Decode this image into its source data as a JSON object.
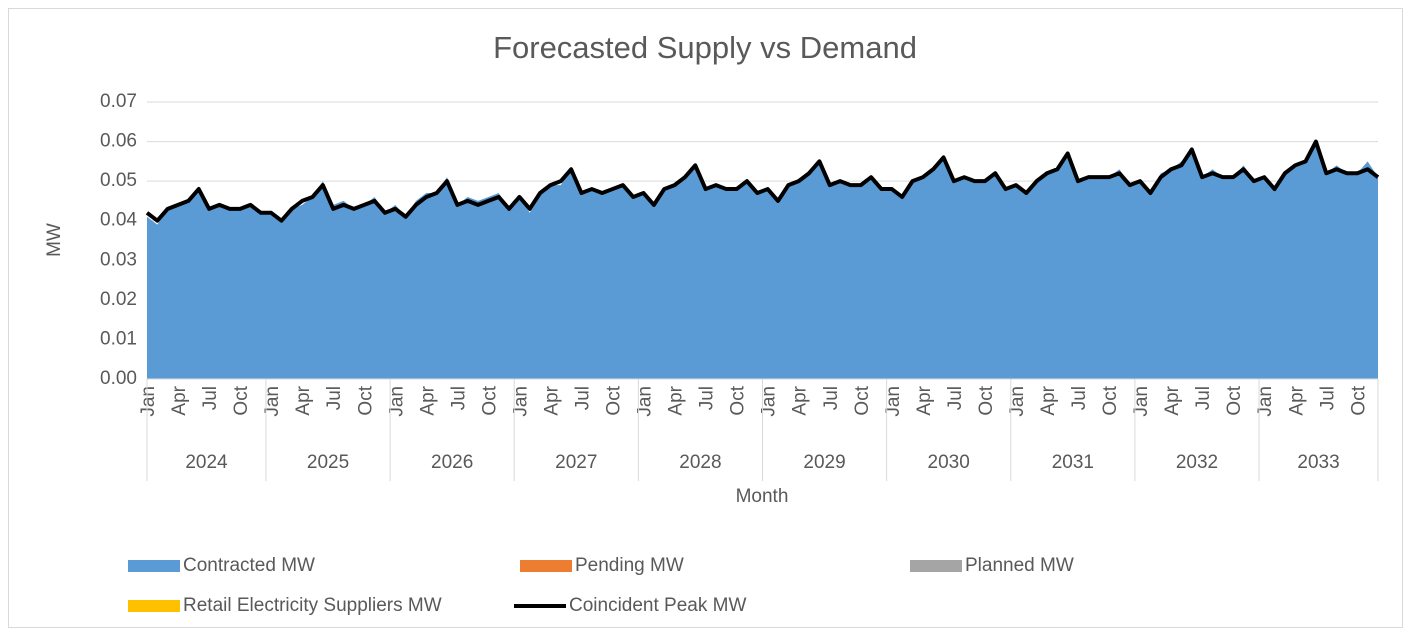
{
  "chart_data": {
    "type": "stacked_area_line",
    "title": "Forecasted Supply vs Demand",
    "y_label": "MW",
    "x_label": "Month",
    "categories": [
      "Jan",
      null,
      null,
      "Apr",
      null,
      null,
      "Jul",
      null,
      null,
      "Oct",
      null,
      null,
      "Jan",
      null,
      null,
      "Apr",
      null,
      null,
      "Jul",
      null,
      null,
      "Oct",
      null,
      null,
      "Jan",
      null,
      null,
      "Apr",
      null,
      null,
      "Jul",
      null,
      null,
      "Oct",
      null,
      null,
      "Jan",
      null,
      null,
      "Apr",
      null,
      null,
      "Jul",
      null,
      null,
      "Oct",
      null,
      null,
      "Jan",
      null,
      null,
      "Apr",
      null,
      null,
      "Jul",
      null,
      null,
      "Oct",
      null,
      null,
      "Jan",
      null,
      null,
      "Apr",
      null,
      null,
      "Jul",
      null,
      null,
      "Oct",
      null,
      null,
      "Jan",
      null,
      null,
      "Apr",
      null,
      null,
      "Jul",
      null,
      null,
      "Oct",
      null,
      null,
      "Jan",
      null,
      null,
      "Apr",
      null,
      null,
      "Jul",
      null,
      null,
      "Oct",
      null,
      null,
      "Jan",
      null,
      null,
      "Apr",
      null,
      null,
      "Jul",
      null,
      null,
      "Oct",
      null,
      null,
      "Jan",
      null,
      null,
      "Apr",
      null,
      null,
      "Jul",
      null,
      null,
      "Oct",
      null,
      null
    ],
    "year_groups": [
      "2024",
      "2025",
      "2026",
      "2027",
      "2028",
      "2029",
      "2030",
      "2031",
      "2032",
      "2033"
    ],
    "ylim": [
      0,
      0.07
    ],
    "yticks": [
      {
        "value": 0,
        "label": "0.00"
      },
      0.01,
      0.02,
      0.03,
      0.04,
      0.05,
      0.06,
      0.07
    ],
    "grid": true,
    "series": [
      {
        "name": "Contracted MW",
        "color": "#5b9bd5",
        "kind": "area",
        "values": [
          0.041,
          0.039,
          0.043,
          0.044,
          0.045,
          0.048,
          0.043,
          0.044,
          0.043,
          0.043,
          0.044,
          0.042,
          0.042,
          0.04,
          0.043,
          0.044,
          0.046,
          0.05,
          0.044,
          0.045,
          0.043,
          0.044,
          0.046,
          0.042,
          0.044,
          0.041,
          0.045,
          0.047,
          0.047,
          0.051,
          0.044,
          0.046,
          0.045,
          0.046,
          0.047,
          0.043,
          0.046,
          0.042,
          0.047,
          0.049,
          0.049,
          0.053,
          0.047,
          0.048,
          0.047,
          0.048,
          0.049,
          0.046,
          0.047,
          0.044,
          0.048,
          0.049,
          0.051,
          0.054,
          0.048,
          0.049,
          0.048,
          0.048,
          0.05,
          0.047,
          0.048,
          0.045,
          0.049,
          0.05,
          0.052,
          0.055,
          0.049,
          0.05,
          0.049,
          0.049,
          0.051,
          0.048,
          0.048,
          0.046,
          0.05,
          0.051,
          0.053,
          0.056,
          0.05,
          0.051,
          0.05,
          0.05,
          0.052,
          0.048,
          0.049,
          0.047,
          0.05,
          0.052,
          0.053,
          0.057,
          0.05,
          0.051,
          0.051,
          0.051,
          0.053,
          0.049,
          0.05,
          0.047,
          0.052,
          0.053,
          0.055,
          0.058,
          0.051,
          0.053,
          0.051,
          0.051,
          0.054,
          0.05,
          0.051,
          0.048,
          0.052,
          0.054,
          0.055,
          0.06,
          0.052,
          0.054,
          0.052,
          0.052,
          0.055,
          0.051
        ]
      },
      {
        "name": "Pending MW",
        "color": "#ed7d31",
        "kind": "area",
        "values": [
          0,
          0,
          0,
          0,
          0,
          0,
          0,
          0,
          0,
          0,
          0,
          0,
          0,
          0,
          0,
          0,
          0,
          0,
          0,
          0,
          0,
          0,
          0,
          0,
          0,
          0,
          0,
          0,
          0,
          0,
          0,
          0,
          0,
          0,
          0,
          0,
          0,
          0,
          0,
          0,
          0,
          0,
          0,
          0,
          0,
          0,
          0,
          0,
          0,
          0,
          0,
          0,
          0,
          0,
          0,
          0,
          0,
          0,
          0,
          0,
          0,
          0,
          0,
          0,
          0,
          0,
          0,
          0,
          0,
          0,
          0,
          0,
          0,
          0,
          0,
          0,
          0,
          0,
          0,
          0,
          0,
          0,
          0,
          0,
          0,
          0,
          0,
          0,
          0,
          0,
          0,
          0,
          0,
          0,
          0,
          0,
          0,
          0,
          0,
          0,
          0,
          0,
          0,
          0,
          0,
          0,
          0,
          0,
          0,
          0,
          0,
          0,
          0,
          0,
          0,
          0,
          0,
          0,
          0,
          0
        ]
      },
      {
        "name": "Planned MW",
        "color": "#a5a5a5",
        "kind": "area",
        "values": [
          0,
          0,
          0,
          0,
          0,
          0,
          0,
          0,
          0,
          0,
          0,
          0,
          0,
          0,
          0,
          0,
          0,
          0,
          0,
          0,
          0,
          0,
          0,
          0,
          0,
          0,
          0,
          0,
          0,
          0,
          0,
          0,
          0,
          0,
          0,
          0,
          0,
          0,
          0,
          0,
          0,
          0,
          0,
          0,
          0,
          0,
          0,
          0,
          0,
          0,
          0,
          0,
          0,
          0,
          0,
          0,
          0,
          0,
          0,
          0,
          0,
          0,
          0,
          0,
          0,
          0,
          0,
          0,
          0,
          0,
          0,
          0,
          0,
          0,
          0,
          0,
          0,
          0,
          0,
          0,
          0,
          0,
          0,
          0,
          0,
          0,
          0,
          0,
          0,
          0,
          0,
          0,
          0,
          0,
          0,
          0,
          0,
          0,
          0,
          0,
          0,
          0,
          0,
          0,
          0,
          0,
          0,
          0,
          0,
          0,
          0,
          0,
          0,
          0,
          0,
          0,
          0,
          0,
          0,
          0
        ]
      },
      {
        "name": "Retail Electricity Suppliers MW",
        "color": "#ffc000",
        "kind": "area",
        "values": [
          0,
          0,
          0,
          0,
          0,
          0,
          0,
          0,
          0,
          0,
          0,
          0,
          0,
          0,
          0,
          0,
          0,
          0,
          0,
          0,
          0,
          0,
          0,
          0,
          0,
          0,
          0,
          0,
          0,
          0,
          0,
          0,
          0,
          0,
          0,
          0,
          0,
          0,
          0,
          0,
          0,
          0,
          0,
          0,
          0,
          0,
          0,
          0,
          0,
          0,
          0,
          0,
          0,
          0,
          0,
          0,
          0,
          0,
          0,
          0,
          0,
          0,
          0,
          0,
          0,
          0,
          0,
          0,
          0,
          0,
          0,
          0,
          0,
          0,
          0,
          0,
          0,
          0,
          0,
          0,
          0,
          0,
          0,
          0,
          0,
          0,
          0,
          0,
          0,
          0,
          0,
          0,
          0,
          0,
          0,
          0,
          0,
          0,
          0,
          0,
          0,
          0,
          0,
          0,
          0,
          0,
          0,
          0,
          0,
          0,
          0,
          0,
          0,
          0,
          0,
          0,
          0,
          0,
          0,
          0
        ]
      },
      {
        "name": "Coincident Peak MW",
        "color": "#000000",
        "kind": "line",
        "values": [
          0.042,
          0.04,
          0.043,
          0.044,
          0.045,
          0.048,
          0.043,
          0.044,
          0.043,
          0.043,
          0.044,
          0.042,
          0.042,
          0.04,
          0.043,
          0.045,
          0.046,
          0.049,
          0.043,
          0.044,
          0.043,
          0.044,
          0.045,
          0.042,
          0.043,
          0.041,
          0.044,
          0.046,
          0.047,
          0.05,
          0.044,
          0.045,
          0.044,
          0.045,
          0.046,
          0.043,
          0.046,
          0.043,
          0.047,
          0.049,
          0.05,
          0.053,
          0.047,
          0.048,
          0.047,
          0.048,
          0.049,
          0.046,
          0.047,
          0.044,
          0.048,
          0.049,
          0.051,
          0.054,
          0.048,
          0.049,
          0.048,
          0.048,
          0.05,
          0.047,
          0.048,
          0.045,
          0.049,
          0.05,
          0.052,
          0.055,
          0.049,
          0.05,
          0.049,
          0.049,
          0.051,
          0.048,
          0.048,
          0.046,
          0.05,
          0.051,
          0.053,
          0.056,
          0.05,
          0.051,
          0.05,
          0.05,
          0.052,
          0.048,
          0.049,
          0.047,
          0.05,
          0.052,
          0.053,
          0.057,
          0.05,
          0.051,
          0.051,
          0.051,
          0.052,
          0.049,
          0.05,
          0.047,
          0.051,
          0.053,
          0.054,
          0.058,
          0.051,
          0.052,
          0.051,
          0.051,
          0.053,
          0.05,
          0.051,
          0.048,
          0.052,
          0.054,
          0.055,
          0.06,
          0.052,
          0.053,
          0.052,
          0.052,
          0.053,
          0.051
        ]
      }
    ]
  }
}
